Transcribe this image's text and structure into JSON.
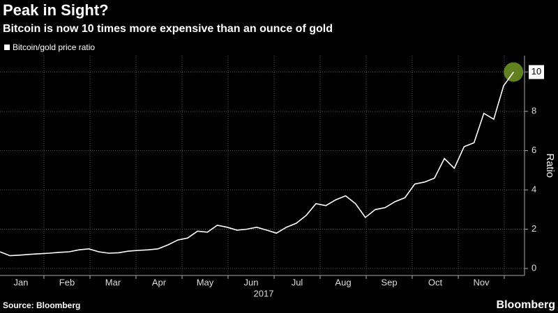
{
  "chart_data": {
    "type": "line",
    "title": "Peak in Sight?",
    "subtitle": "Bitcoin is now 10 times more expensive than an ounce of gold",
    "xticks": [
      "Jan",
      "Feb",
      "Mar",
      "Apr",
      "May",
      "Jun",
      "Jul",
      "Aug",
      "Sep",
      "Oct",
      "Nov"
    ],
    "xlabel": "2017",
    "ylabel": "Ratio",
    "ylim": [
      0,
      10.8
    ],
    "yticks": [
      0,
      2,
      4,
      6,
      8,
      10
    ],
    "grid": true,
    "legend": "top-left",
    "series": [
      {
        "name": "Bitcoin/gold price ratio",
        "color": "#ffffff",
        "highlight_color": "#6b8e23",
        "values": [
          0.85,
          0.65,
          0.68,
          0.72,
          0.75,
          0.78,
          0.82,
          0.85,
          0.95,
          1.0,
          0.85,
          0.78,
          0.8,
          0.88,
          0.92,
          0.95,
          1.0,
          1.2,
          1.45,
          1.55,
          1.9,
          1.85,
          2.2,
          2.1,
          1.95,
          2.0,
          2.1,
          1.95,
          1.8,
          2.1,
          2.3,
          2.7,
          3.3,
          3.2,
          3.5,
          3.7,
          3.3,
          2.6,
          3.0,
          3.1,
          3.4,
          3.6,
          4.3,
          4.4,
          4.6,
          5.6,
          5.1,
          6.2,
          6.4,
          7.9,
          7.6,
          9.3,
          10.0
        ]
      }
    ],
    "source": "Source: Bloomberg",
    "brand": "Bloomberg"
  }
}
